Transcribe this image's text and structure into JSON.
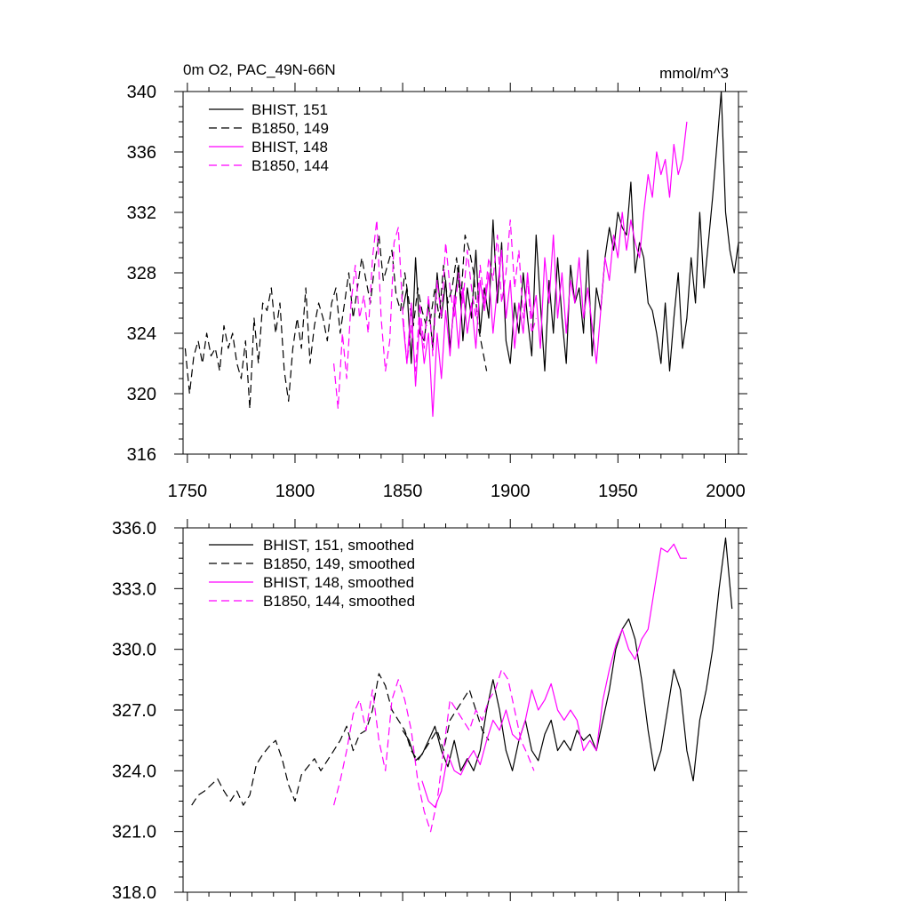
{
  "chart_data": [
    {
      "type": "line",
      "title_left": "0m O2, PAC_49N-66N",
      "title_right": "mmol/m^3",
      "xlim": [
        1748,
        2006
      ],
      "ylim": [
        316,
        340
      ],
      "yticks": [
        "316",
        "320",
        "324",
        "328",
        "332",
        "336",
        "340"
      ],
      "xticks": [
        "1750",
        "1800",
        "1850",
        "1900",
        "1950",
        "2000"
      ],
      "legend_position": "top-left",
      "series": [
        {
          "name": "BHIST, 151",
          "color": "#000000",
          "dash": "solid",
          "x": [
            1850,
            1852,
            1854,
            1856,
            1858,
            1860,
            1862,
            1864,
            1866,
            1868,
            1870,
            1872,
            1874,
            1876,
            1878,
            1880,
            1882,
            1884,
            1886,
            1888,
            1890,
            1892,
            1894,
            1896,
            1898,
            1900,
            1902,
            1904,
            1906,
            1908,
            1910,
            1912,
            1914,
            1916,
            1918,
            1920,
            1922,
            1924,
            1926,
            1928,
            1930,
            1932,
            1934,
            1936,
            1938,
            1940,
            1942,
            1944,
            1946,
            1948,
            1950,
            1952,
            1954,
            1956,
            1958,
            1960,
            1962,
            1964,
            1966,
            1968,
            1970,
            1972,
            1974,
            1976,
            1978,
            1980,
            1982,
            1984,
            1986,
            1988,
            1990,
            1992,
            1994,
            1996,
            1998,
            2000,
            2002,
            2004,
            2006
          ],
          "values": [
            325.5,
            327.0,
            322.0,
            329.0,
            324.0,
            323.5,
            326.0,
            323.0,
            328.0,
            325.0,
            327.5,
            323.0,
            326.0,
            328.5,
            323.5,
            327.0,
            325.0,
            329.5,
            324.0,
            327.0,
            325.0,
            331.5,
            326.0,
            330.0,
            323.5,
            322.0,
            326.0,
            324.0,
            328.0,
            325.0,
            322.5,
            330.5,
            326.0,
            321.5,
            327.5,
            324.0,
            329.0,
            325.0,
            322.0,
            328.5,
            326.0,
            327.0,
            324.0,
            329.5,
            322.5,
            327.0,
            325.5,
            329.0,
            331.0,
            329.5,
            332.0,
            331.0,
            330.5,
            334.0,
            328.0,
            330.0,
            329.0,
            326.0,
            325.5,
            324.0,
            322.0,
            326.0,
            321.5,
            325.0,
            328.0,
            323.0,
            325.0,
            329.0,
            326.0,
            332.0,
            327.0,
            330.0,
            333.0,
            336.5,
            340.0,
            332.0,
            329.5,
            328.0,
            330.0
          ]
        },
        {
          "name": "B1850, 149",
          "color": "#000000",
          "dash": "dashed",
          "x": [
            1749,
            1751,
            1753,
            1755,
            1757,
            1759,
            1761,
            1763,
            1765,
            1767,
            1769,
            1771,
            1773,
            1775,
            1777,
            1779,
            1781,
            1783,
            1785,
            1787,
            1789,
            1791,
            1793,
            1795,
            1797,
            1799,
            1801,
            1803,
            1805,
            1807,
            1809,
            1811,
            1813,
            1815,
            1817,
            1819,
            1821,
            1823,
            1825,
            1827,
            1829,
            1831,
            1833,
            1835,
            1837,
            1839,
            1841,
            1843,
            1845,
            1847,
            1849,
            1851,
            1853,
            1855,
            1857,
            1859,
            1861,
            1863,
            1865,
            1867,
            1869,
            1871,
            1873,
            1875,
            1877,
            1879,
            1881,
            1883,
            1885,
            1887,
            1889
          ],
          "values": [
            323.0,
            320.0,
            322.5,
            323.5,
            322.0,
            324.0,
            322.5,
            323.0,
            321.5,
            324.5,
            323.0,
            324.0,
            322.0,
            321.0,
            323.5,
            319.0,
            325.0,
            322.0,
            326.0,
            325.5,
            327.0,
            324.0,
            326.0,
            321.5,
            319.5,
            323.0,
            325.0,
            323.0,
            327.0,
            322.0,
            324.5,
            326.0,
            325.0,
            323.5,
            326.0,
            327.0,
            324.0,
            326.0,
            328.0,
            325.0,
            327.0,
            329.0,
            327.5,
            326.0,
            328.5,
            330.5,
            327.5,
            328.5,
            329.5,
            326.5,
            325.5,
            328.0,
            326.0,
            324.5,
            327.0,
            325.5,
            324.5,
            325.0,
            327.0,
            325.0,
            328.5,
            326.0,
            327.0,
            329.0,
            326.0,
            330.5,
            329.5,
            328.0,
            324.5,
            323.0,
            321.5
          ]
        },
        {
          "name": "BHIST, 148",
          "color": "#ff00ff",
          "dash": "solid",
          "x": [
            1850,
            1852,
            1854,
            1856,
            1858,
            1860,
            1862,
            1864,
            1866,
            1868,
            1870,
            1872,
            1874,
            1876,
            1878,
            1880,
            1882,
            1884,
            1886,
            1888,
            1890,
            1892,
            1894,
            1896,
            1898,
            1900,
            1902,
            1904,
            1906,
            1908,
            1910,
            1912,
            1914,
            1916,
            1918,
            1920,
            1922,
            1924,
            1926,
            1928,
            1930,
            1932,
            1934,
            1936,
            1938,
            1940,
            1942,
            1944,
            1946,
            1948,
            1950,
            1952,
            1954,
            1956,
            1958,
            1960,
            1962,
            1964,
            1966,
            1968,
            1970,
            1972,
            1974,
            1976,
            1978,
            1980,
            1982
          ],
          "values": [
            325.0,
            322.0,
            326.0,
            320.5,
            325.0,
            322.0,
            324.0,
            318.5,
            324.0,
            321.0,
            325.5,
            322.5,
            326.5,
            323.0,
            327.0,
            324.0,
            326.0,
            323.0,
            327.5,
            325.5,
            328.0,
            324.0,
            327.0,
            329.5,
            325.0,
            327.5,
            323.0,
            326.0,
            324.0,
            328.0,
            325.0,
            326.5,
            323.0,
            329.0,
            326.0,
            330.5,
            325.0,
            328.0,
            324.0,
            327.5,
            326.0,
            329.0,
            325.0,
            327.0,
            324.5,
            322.0,
            325.5,
            329.0,
            327.5,
            330.5,
            329.0,
            332.0,
            329.5,
            331.5,
            330.0,
            329.0,
            332.0,
            334.5,
            333.0,
            336.0,
            334.5,
            335.5,
            333.0,
            336.5,
            334.5,
            335.5,
            338.0
          ]
        },
        {
          "name": "B1850, 144",
          "color": "#ff00ff",
          "dash": "dashed",
          "x": [
            1818,
            1820,
            1822,
            1824,
            1826,
            1828,
            1830,
            1832,
            1834,
            1836,
            1838,
            1840,
            1842,
            1844,
            1846,
            1848,
            1850,
            1852,
            1854,
            1856,
            1858,
            1860,
            1862,
            1864,
            1866,
            1868,
            1870,
            1872,
            1874,
            1876,
            1878,
            1880,
            1882,
            1884,
            1886,
            1888,
            1890,
            1892,
            1894,
            1896,
            1898,
            1900,
            1902,
            1904,
            1906,
            1908,
            1910,
            1912
          ],
          "values": [
            322.0,
            319.0,
            324.0,
            321.0,
            326.0,
            328.5,
            325.0,
            326.5,
            324.0,
            329.0,
            331.5,
            325.0,
            321.5,
            323.5,
            330.0,
            331.0,
            325.5,
            322.0,
            324.5,
            321.5,
            326.0,
            323.0,
            326.5,
            322.5,
            327.5,
            325.0,
            330.0,
            327.0,
            325.0,
            328.0,
            326.0,
            329.5,
            327.0,
            325.0,
            328.5,
            326.0,
            329.0,
            327.5,
            330.5,
            326.0,
            328.0,
            331.5,
            327.0,
            329.5,
            325.0,
            327.5,
            324.0,
            325.0
          ]
        }
      ]
    },
    {
      "type": "line",
      "xlim": [
        1748,
        2006
      ],
      "ylim": [
        318,
        336
      ],
      "yticks": [
        "318.0",
        "321.0",
        "324.0",
        "327.0",
        "330.0",
        "333.0",
        "336.0"
      ],
      "legend_position": "top-left",
      "series": [
        {
          "name": "BHIST, 151, smoothed",
          "color": "#000000",
          "dash": "solid",
          "x": [
            1850,
            1853,
            1856,
            1859,
            1862,
            1865,
            1868,
            1871,
            1874,
            1877,
            1880,
            1883,
            1886,
            1889,
            1892,
            1895,
            1898,
            1901,
            1904,
            1907,
            1910,
            1913,
            1916,
            1919,
            1922,
            1925,
            1928,
            1931,
            1934,
            1937,
            1940,
            1943,
            1946,
            1949,
            1952,
            1955,
            1958,
            1961,
            1964,
            1967,
            1970,
            1973,
            1976,
            1979,
            1982,
            1985,
            1988,
            1991,
            1994,
            1997,
            2000,
            2003
          ],
          "values": [
            326.0,
            325.5,
            324.5,
            324.8,
            325.5,
            326.2,
            325.0,
            324.2,
            325.5,
            324.0,
            324.6,
            324.0,
            325.0,
            327.0,
            328.5,
            327.0,
            325.0,
            324.0,
            325.5,
            326.5,
            325.0,
            324.5,
            325.8,
            326.5,
            325.0,
            325.5,
            325.0,
            326.0,
            325.5,
            325.8,
            325.0,
            326.5,
            328.0,
            330.0,
            331.0,
            331.5,
            330.5,
            328.5,
            326.0,
            324.0,
            325.0,
            327.0,
            329.0,
            328.0,
            325.0,
            323.5,
            326.5,
            328.0,
            330.0,
            333.0,
            335.5,
            332.0
          ]
        },
        {
          "name": "B1850, 149, smoothed",
          "color": "#000000",
          "dash": "dashed",
          "x": [
            1752,
            1755,
            1758,
            1761,
            1764,
            1767,
            1770,
            1773,
            1776,
            1779,
            1782,
            1785,
            1788,
            1791,
            1794,
            1797,
            1800,
            1803,
            1806,
            1809,
            1812,
            1815,
            1818,
            1821,
            1824,
            1827,
            1830,
            1833,
            1836,
            1839,
            1842,
            1845,
            1848,
            1851,
            1854,
            1857,
            1860,
            1863,
            1866,
            1869,
            1872,
            1875,
            1878,
            1881,
            1884,
            1887,
            1890
          ],
          "values": [
            322.3,
            322.8,
            323.0,
            323.3,
            323.6,
            323.0,
            322.5,
            323.0,
            322.3,
            322.8,
            324.3,
            324.8,
            325.2,
            325.5,
            324.6,
            323.3,
            322.5,
            323.8,
            324.2,
            324.6,
            324.0,
            324.5,
            325.0,
            325.5,
            326.2,
            325.0,
            325.8,
            326.0,
            327.0,
            328.8,
            328.2,
            327.0,
            326.5,
            326.0,
            325.0,
            324.5,
            325.0,
            325.5,
            326.0,
            325.0,
            326.5,
            327.0,
            327.5,
            328.0,
            327.0,
            326.0,
            325.5
          ]
        },
        {
          "name": "BHIST, 148, smoothed",
          "color": "#ff00ff",
          "dash": "solid",
          "x": [
            1859,
            1862,
            1865,
            1868,
            1871,
            1874,
            1877,
            1880,
            1883,
            1886,
            1889,
            1892,
            1895,
            1898,
            1901,
            1904,
            1907,
            1910,
            1913,
            1916,
            1919,
            1922,
            1925,
            1928,
            1931,
            1934,
            1937,
            1940,
            1943,
            1946,
            1949,
            1952,
            1955,
            1958,
            1961,
            1964,
            1967,
            1970,
            1973,
            1976,
            1979,
            1982
          ],
          "values": [
            323.5,
            322.5,
            322.2,
            323.0,
            324.8,
            324.0,
            323.8,
            324.5,
            325.0,
            324.3,
            325.5,
            326.5,
            326.0,
            327.0,
            325.8,
            325.5,
            326.5,
            328.0,
            327.0,
            327.5,
            328.3,
            327.0,
            326.5,
            327.0,
            326.5,
            325.0,
            325.5,
            325.0,
            327.5,
            329.0,
            330.2,
            331.0,
            330.0,
            329.5,
            330.5,
            331.0,
            333.0,
            335.0,
            334.8,
            335.2,
            334.5,
            334.5
          ]
        },
        {
          "name": "B1850, 144, smoothed",
          "color": "#ff00ff",
          "dash": "dashed",
          "x": [
            1818,
            1821,
            1824,
            1827,
            1830,
            1833,
            1836,
            1839,
            1842,
            1845,
            1848,
            1851,
            1854,
            1857,
            1860,
            1863,
            1866,
            1869,
            1872,
            1875,
            1878,
            1881,
            1884,
            1887,
            1890,
            1893,
            1896,
            1899,
            1902,
            1905,
            1908,
            1911
          ],
          "values": [
            322.3,
            323.5,
            325.0,
            326.8,
            327.5,
            326.0,
            328.0,
            325.5,
            324.0,
            327.5,
            328.5,
            327.5,
            326.0,
            323.5,
            322.0,
            321.0,
            322.5,
            325.0,
            327.5,
            327.0,
            326.5,
            326.0,
            327.0,
            326.5,
            327.5,
            328.0,
            329.0,
            328.5,
            327.0,
            325.5,
            324.8,
            324.0
          ]
        }
      ]
    }
  ]
}
